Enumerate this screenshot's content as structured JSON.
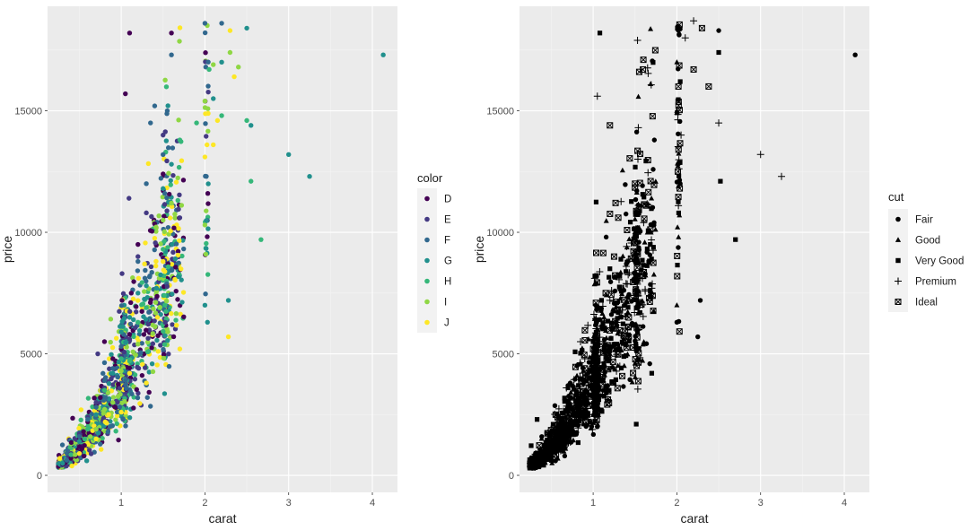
{
  "chart_data": [
    {
      "type": "scatter",
      "xlabel": "carat",
      "ylabel": "price",
      "xlim": [
        0.12,
        4.3
      ],
      "ylim": [
        -700,
        19300
      ],
      "xticks": [
        1,
        2,
        3,
        4
      ],
      "yticks": [
        0,
        5000,
        10000,
        15000
      ],
      "grid": true,
      "legend": {
        "title": "color",
        "placement": "right"
      },
      "series": [
        {
          "name": "D",
          "color": "#440154",
          "points": [
            [
              0.3,
              450
            ],
            [
              0.33,
              520
            ],
            [
              0.35,
              600
            ],
            [
              0.4,
              700
            ],
            [
              0.42,
              2350
            ],
            [
              0.5,
              1500
            ],
            [
              0.55,
              1800
            ],
            [
              0.6,
              2200
            ],
            [
              0.7,
              2900
            ],
            [
              0.75,
              3200
            ],
            [
              0.8,
              5500
            ],
            [
              0.9,
              4800
            ],
            [
              1.0,
              5200
            ],
            [
              1.01,
              7200
            ],
            [
              1.05,
              15700
            ],
            [
              1.1,
              5800
            ],
            [
              1.12,
              7500
            ],
            [
              1.2,
              9500
            ],
            [
              1.5,
              12400
            ],
            [
              1.6,
              18200
            ],
            [
              1.1,
              18200
            ]
          ]
        },
        {
          "name": "E",
          "color": "#443a83",
          "points": [
            [
              0.3,
              480
            ],
            [
              0.4,
              900
            ],
            [
              0.5,
              1700
            ],
            [
              0.6,
              2400
            ],
            [
              0.7,
              3000
            ],
            [
              0.8,
              3600
            ],
            [
              0.9,
              4100
            ],
            [
              1.0,
              4900
            ],
            [
              1.1,
              5600
            ],
            [
              1.2,
              9000
            ],
            [
              1.3,
              10800
            ],
            [
              1.5,
              14000
            ],
            [
              1.7,
              10600
            ],
            [
              0.72,
              5000
            ],
            [
              1.01,
              8300
            ]
          ]
        },
        {
          "name": "F",
          "color": "#31688e",
          "points": [
            [
              0.35,
              620
            ],
            [
              0.5,
              1600
            ],
            [
              0.6,
              2300
            ],
            [
              0.7,
              2800
            ],
            [
              0.8,
              3900
            ],
            [
              0.9,
              4400
            ],
            [
              1.0,
              5300
            ],
            [
              1.2,
              8800
            ],
            [
              1.3,
              12000
            ],
            [
              1.35,
              14500
            ],
            [
              1.4,
              15200
            ],
            [
              1.55,
              15000
            ],
            [
              1.6,
              17300
            ],
            [
              2.0,
              18600
            ],
            [
              2.01,
              16800
            ],
            [
              2.2,
              18600
            ],
            [
              1.5,
              13200
            ],
            [
              1.52,
              11600
            ]
          ]
        },
        {
          "name": "G",
          "color": "#21908d",
          "points": [
            [
              0.3,
              500
            ],
            [
              0.5,
              1400
            ],
            [
              0.7,
              2500
            ],
            [
              0.9,
              4200
            ],
            [
              1.0,
              5900
            ],
            [
              1.1,
              6500
            ],
            [
              1.2,
              7500
            ],
            [
              1.3,
              7800
            ],
            [
              1.5,
              11800
            ],
            [
              1.6,
              12800
            ],
            [
              2.0,
              7000
            ],
            [
              2.03,
              6300
            ],
            [
              2.1,
              15500
            ],
            [
              2.2,
              17000
            ],
            [
              2.28,
              7200
            ],
            [
              2.5,
              18400
            ],
            [
              2.55,
              14400
            ],
            [
              3.0,
              13200
            ],
            [
              3.25,
              12300
            ],
            [
              4.13,
              17300
            ]
          ]
        },
        {
          "name": "H",
          "color": "#35b779",
          "points": [
            [
              0.4,
              850
            ],
            [
              0.6,
              1900
            ],
            [
              0.8,
              3500
            ],
            [
              1.0,
              4800
            ],
            [
              1.1,
              4700
            ],
            [
              1.2,
              6300
            ],
            [
              1.3,
              6900
            ],
            [
              1.5,
              9300
            ],
            [
              1.7,
              13800
            ],
            [
              1.9,
              14500
            ],
            [
              2.05,
              16700
            ],
            [
              2.2,
              14800
            ],
            [
              2.5,
              14600
            ],
            [
              2.67,
              9700
            ],
            [
              2.55,
              12100
            ]
          ]
        },
        {
          "name": "I",
          "color": "#8fd744",
          "points": [
            [
              0.45,
              850
            ],
            [
              0.7,
              1900
            ],
            [
              0.9,
              3000
            ],
            [
              1.0,
              4300
            ],
            [
              1.2,
              5400
            ],
            [
              1.5,
              10500
            ],
            [
              1.6,
              11200
            ],
            [
              2.0,
              15400
            ],
            [
              2.1,
              16900
            ],
            [
              2.3,
              17400
            ],
            [
              2.4,
              16800
            ],
            [
              2.0,
              10300
            ],
            [
              2.01,
              9100
            ]
          ]
        },
        {
          "name": "J",
          "color": "#fde725",
          "points": [
            [
              0.5,
              900
            ],
            [
              0.7,
              1500
            ],
            [
              0.85,
              2500
            ],
            [
              1.0,
              2600
            ],
            [
              1.1,
              4200
            ],
            [
              1.3,
              3800
            ],
            [
              1.5,
              8800
            ],
            [
              1.7,
              5200
            ],
            [
              2.0,
              13100
            ],
            [
              2.1,
              13600
            ],
            [
              2.15,
              14600
            ],
            [
              2.28,
              5700
            ],
            [
              2.3,
              18300
            ],
            [
              2.35,
              16400
            ]
          ]
        }
      ]
    },
    {
      "type": "scatter",
      "xlabel": "carat",
      "ylabel": "price",
      "xlim": [
        0.12,
        4.3
      ],
      "ylim": [
        -700,
        19300
      ],
      "xticks": [
        1,
        2,
        3,
        4
      ],
      "yticks": [
        0,
        5000,
        10000,
        15000
      ],
      "grid": true,
      "legend": {
        "title": "cut",
        "placement": "right"
      },
      "series": [
        {
          "name": "Fair",
          "shape": "circle",
          "points": [
            [
              0.5,
              1800
            ],
            [
              0.6,
              1800
            ],
            [
              0.8,
              2100
            ],
            [
              0.9,
              2600
            ],
            [
              1.0,
              3300
            ],
            [
              1.05,
              2000
            ],
            [
              1.12,
              3500
            ],
            [
              1.2,
              5300
            ],
            [
              1.5,
              8000
            ],
            [
              2.0,
              6300
            ],
            [
              2.28,
              7200
            ],
            [
              2.25,
              5700
            ],
            [
              2.5,
              18300
            ],
            [
              2.04,
              12000
            ],
            [
              4.13,
              17300
            ]
          ]
        },
        {
          "name": "Good",
          "shape": "triangle",
          "points": [
            [
              0.4,
              700
            ],
            [
              0.6,
              1900
            ],
            [
              0.8,
              2500
            ],
            [
              1.0,
              4000
            ],
            [
              1.2,
              5000
            ],
            [
              1.5,
              4600
            ],
            [
              2.0,
              7000
            ],
            [
              2.03,
              10700
            ],
            [
              2.02,
              9800
            ],
            [
              2.0,
              15000
            ],
            [
              2.0,
              17000
            ]
          ]
        },
        {
          "name": "Very Good",
          "shape": "square",
          "points": [
            [
              0.33,
              2300
            ],
            [
              0.5,
              1300
            ],
            [
              0.7,
              3600
            ],
            [
              1.0,
              5500
            ],
            [
              1.05,
              6400
            ],
            [
              1.1,
              7200
            ],
            [
              1.2,
              8500
            ],
            [
              1.3,
              6700
            ],
            [
              1.51,
              5400
            ],
            [
              1.7,
              4200
            ],
            [
              1.08,
              18200
            ],
            [
              2.5,
              17400
            ],
            [
              2.52,
              12100
            ],
            [
              2.7,
              9700
            ],
            [
              2.04,
              16200
            ]
          ]
        },
        {
          "name": "Premium",
          "shape": "plus",
          "points": [
            [
              0.3,
              400
            ],
            [
              0.5,
              1600
            ],
            [
              0.7,
              3100
            ],
            [
              0.9,
              4800
            ],
            [
              1.0,
              5600
            ],
            [
              1.2,
              7200
            ],
            [
              1.5,
              9800
            ],
            [
              1.7,
              7700
            ],
            [
              2.1,
              18000
            ],
            [
              2.2,
              18700
            ],
            [
              2.5,
              14500
            ],
            [
              1.53,
              17900
            ],
            [
              1.05,
              15600
            ],
            [
              3.0,
              13200
            ],
            [
              3.25,
              12300
            ],
            [
              2.05,
              14000
            ]
          ]
        },
        {
          "name": "Ideal",
          "shape": "xsquare",
          "points": [
            [
              0.35,
              500
            ],
            [
              0.45,
              900
            ],
            [
              0.6,
              1900
            ],
            [
              0.8,
              3100
            ],
            [
              0.9,
              4400
            ],
            [
              1.0,
              5200
            ],
            [
              1.15,
              7500
            ],
            [
              1.25,
              9000
            ],
            [
              1.3,
              10600
            ],
            [
              1.5,
              12000
            ],
            [
              1.55,
              16600
            ],
            [
              1.6,
              17100
            ],
            [
              2.02,
              13400
            ],
            [
              2.2,
              16700
            ],
            [
              2.3,
              18400
            ],
            [
              2.38,
              16000
            ],
            [
              1.2,
              14400
            ]
          ]
        }
      ]
    }
  ]
}
